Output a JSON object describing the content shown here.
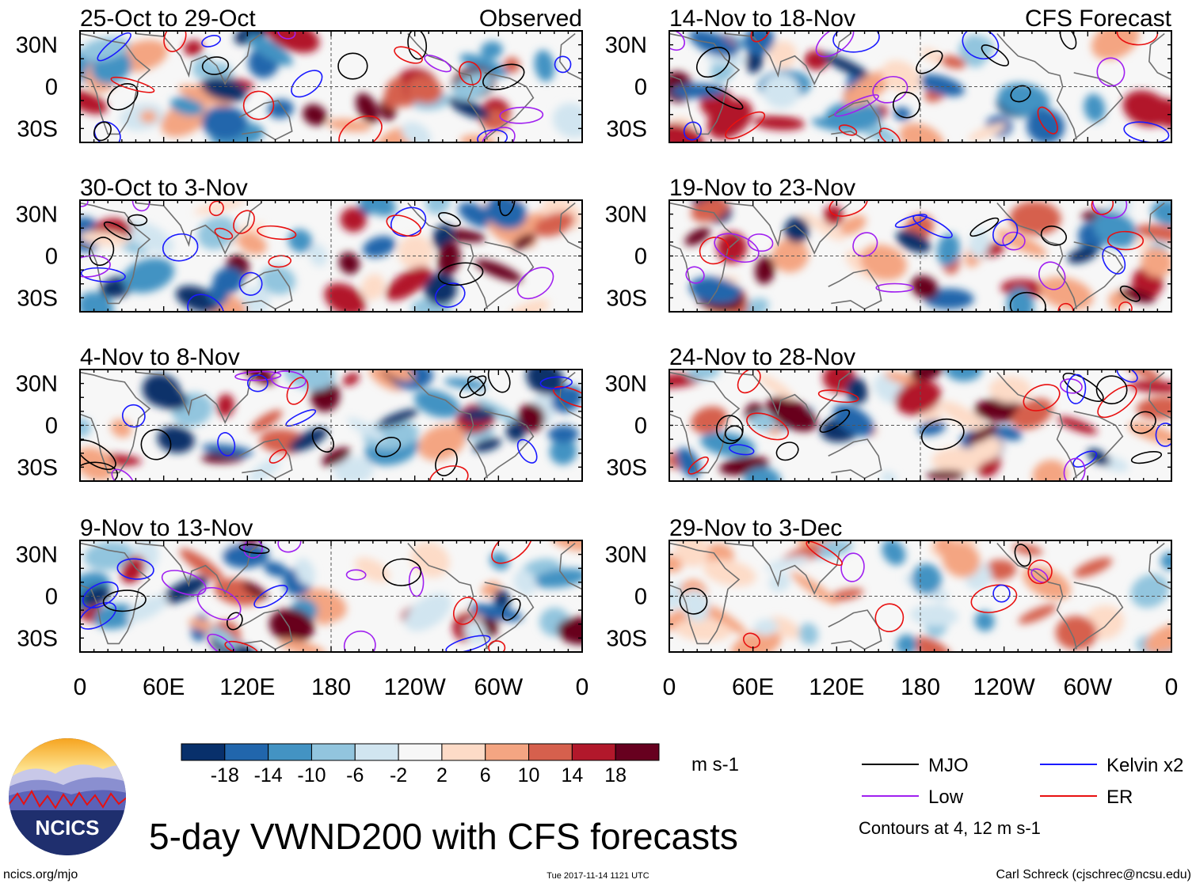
{
  "chart_data": {
    "type": "heatmap",
    "title": "5-day VWND200 with CFS forecasts",
    "variable": "VWND200",
    "units": "m s-1",
    "x_tick_labels": [
      "0",
      "60E",
      "120E",
      "180",
      "120W",
      "60W",
      "0"
    ],
    "x_tick_lons": [
      0,
      60,
      120,
      180,
      240,
      300,
      360
    ],
    "y_tick_labels": [
      "30N",
      "0",
      "30S"
    ],
    "y_tick_lats": [
      30,
      0,
      -30
    ],
    "xlim": [
      0,
      360
    ],
    "ylim": [
      -40,
      40
    ],
    "column_labels": [
      "Observed",
      "CFS Forecast"
    ],
    "panels": [
      {
        "column": 0,
        "row": 0,
        "period": "25-Oct to 29-Oct",
        "label": "Observed"
      },
      {
        "column": 0,
        "row": 1,
        "period": "30-Oct to 3-Nov",
        "label": ""
      },
      {
        "column": 0,
        "row": 2,
        "period": "4-Nov to 8-Nov",
        "label": ""
      },
      {
        "column": 0,
        "row": 3,
        "period": "9-Nov to 13-Nov",
        "label": ""
      },
      {
        "column": 1,
        "row": 0,
        "period": "14-Nov to 18-Nov",
        "label": "CFS Forecast"
      },
      {
        "column": 1,
        "row": 1,
        "period": "19-Nov to 23-Nov",
        "label": ""
      },
      {
        "column": 1,
        "row": 2,
        "period": "24-Nov to 28-Nov",
        "label": ""
      },
      {
        "column": 1,
        "row": 3,
        "period": "29-Nov to 3-Dec",
        "label": ""
      }
    ],
    "colorbar": {
      "tick_labels": [
        "-18",
        "-14",
        "-10",
        "-6",
        "-2",
        "2",
        "6",
        "10",
        "14",
        "18"
      ],
      "colors": [
        "#08306b",
        "#2166ac",
        "#4393c3",
        "#92c5de",
        "#d1e5f0",
        "#f7f7f7",
        "#fddbc7",
        "#f4a582",
        "#d6604d",
        "#b2182b",
        "#67001f"
      ]
    },
    "legend": [
      {
        "label": "MJO",
        "color": "#000000"
      },
      {
        "label": "Kelvin x2",
        "color": "#1a1aff"
      },
      {
        "label": "Low",
        "color": "#a020f0"
      },
      {
        "label": "ER",
        "color": "#e81010"
      }
    ],
    "contour_note": "Contours at 4, 12 m s-1"
  },
  "footer": {
    "logo_text": "NCICS",
    "url": "ncics.org/mjo",
    "timestamp": "Tue 2017-11-14 1121 UTC",
    "credit": "Carl Schreck (cjschrec@ncsu.edu)"
  }
}
